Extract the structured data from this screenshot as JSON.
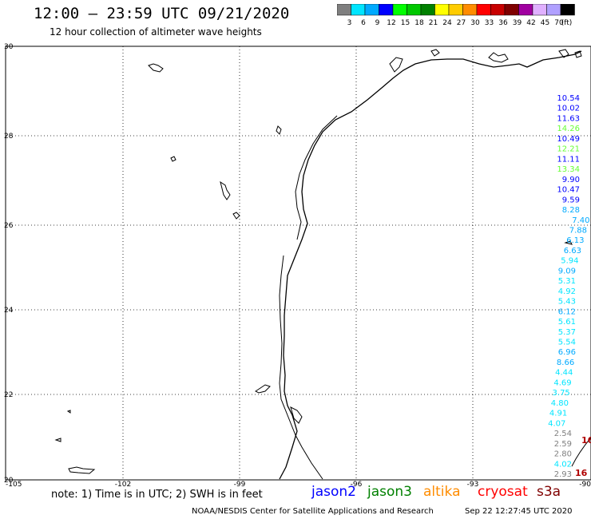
{
  "header": {
    "title": "12:00 – 23:59 UTC 09/21/2020",
    "subtitle": "12 hour collection of altimeter wave heights"
  },
  "colorbar": {
    "colors": [
      "#7f7f7f",
      "#00e5ff",
      "#00aaff",
      "#0000ff",
      "#00ff00",
      "#00c800",
      "#008000",
      "#ffff00",
      "#ffcc00",
      "#ff8c00",
      "#ff0000",
      "#c80000",
      "#7f0000",
      "#a000a0",
      "#e0b0ff",
      "#b0a0ff",
      "#000000"
    ],
    "labels": [
      "3",
      "6",
      "9",
      "12",
      "15",
      "18",
      "21",
      "24",
      "27",
      "30",
      "33",
      "36",
      "39",
      "42",
      "45",
      "70"
    ],
    "unit": "(ft)"
  },
  "axes": {
    "lon_ticks": [
      "-105",
      "-102",
      "-99",
      "-96",
      "-93",
      "-90"
    ],
    "lat_ticks": [
      "30",
      "28",
      "26",
      "24",
      "22",
      "20"
    ]
  },
  "observations": [
    {
      "value": "10.54",
      "color": "#0000ff"
    },
    {
      "value": "10.02",
      "color": "#0000ff"
    },
    {
      "value": "11.63",
      "color": "#0000ff"
    },
    {
      "value": "14.26",
      "color": "#66ff33"
    },
    {
      "value": "10.49",
      "color": "#0000ff"
    },
    {
      "value": "12.21",
      "color": "#66ff33"
    },
    {
      "value": "11.11",
      "color": "#0000ff"
    },
    {
      "value": "13.34",
      "color": "#66ff33"
    },
    {
      "value": "9.90",
      "color": "#0000ff"
    },
    {
      "value": "10.47",
      "color": "#0000ff"
    },
    {
      "value": "9.59",
      "color": "#0000ff"
    },
    {
      "value": "8.28",
      "color": "#00aaff"
    },
    {
      "value": "7.40",
      "color": "#00aaff"
    },
    {
      "value": "7.88",
      "color": "#00aaff"
    },
    {
      "value": "6.13",
      "color": "#00aaff"
    },
    {
      "value": "6.63",
      "color": "#00aaff"
    },
    {
      "value": "5.94",
      "color": "#00e5ff"
    },
    {
      "value": "9.09",
      "color": "#00aaff"
    },
    {
      "value": "5.31",
      "color": "#00e5ff"
    },
    {
      "value": "4.92",
      "color": "#00e5ff"
    },
    {
      "value": "5.43",
      "color": "#00e5ff"
    },
    {
      "value": "6.12",
      "color": "#00aaff"
    },
    {
      "value": "5.61",
      "color": "#00e5ff"
    },
    {
      "value": "5.37",
      "color": "#00e5ff"
    },
    {
      "value": "5.54",
      "color": "#00e5ff"
    },
    {
      "value": "6.96",
      "color": "#00aaff"
    },
    {
      "value": "8.66",
      "color": "#00aaff"
    },
    {
      "value": "4.44",
      "color": "#00e5ff"
    },
    {
      "value": "4.69",
      "color": "#00e5ff"
    },
    {
      "value": "3.75",
      "color": "#00e5ff"
    },
    {
      "value": "4.80",
      "color": "#00e5ff"
    },
    {
      "value": "4.91",
      "color": "#00e5ff"
    },
    {
      "value": "4.07",
      "color": "#00e5ff"
    },
    {
      "value": "2.54",
      "color": "#7f7f7f"
    },
    {
      "value": "2.59",
      "color": "#7f7f7f"
    },
    {
      "value": "2.80",
      "color": "#7f7f7f"
    },
    {
      "value": "4.02",
      "color": "#00e5ff"
    },
    {
      "value": "2.93",
      "color": "#7f7f7f"
    }
  ],
  "red_labels": [
    {
      "value": "16",
      "color": "#b00000"
    },
    {
      "value": "16",
      "color": "#b00000"
    }
  ],
  "legend": {
    "note": "note: 1) Time is in UTC; 2) SWH is in feet",
    "satellites": [
      {
        "name": "jason2",
        "color": "#0000ff"
      },
      {
        "name": "jason3",
        "color": "#008000"
      },
      {
        "name": "altika",
        "color": "#ff8c00"
      },
      {
        "name": "cryosat",
        "color": "#ff0000"
      },
      {
        "name": "s3a",
        "color": "#800000"
      }
    ]
  },
  "footer": {
    "credit": "NOAA/NESDIS Center for Satellite Applications and Research",
    "timestamp": "Sep 22 12:27:45 UTC 2020"
  }
}
